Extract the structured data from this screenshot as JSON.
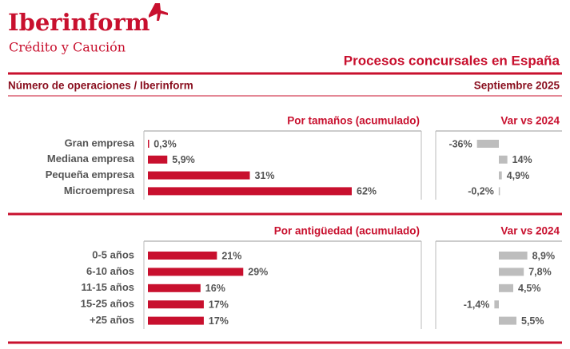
{
  "header": {
    "brand": "Iberinform",
    "tagline": "Crédito y Caución",
    "title": "Procesos concursales en España",
    "subtitle": "Número de operaciones / Iberinform",
    "date": "Septiembre 2025"
  },
  "chart_data": [
    {
      "type": "bar",
      "title": "Por tamaños (acumulado)",
      "categories": [
        "Gran empresa",
        "Mediana empresa",
        "Pequeña empresa",
        "Microempresa"
      ],
      "values": [
        0.3,
        5.9,
        31,
        62
      ],
      "value_labels": [
        "0,3%",
        "5,9%",
        "31%",
        "62%"
      ],
      "color": "#c8102e",
      "xlim": [
        0,
        62
      ]
    },
    {
      "type": "bar",
      "title": "Var vs 2024",
      "values": [
        -36,
        14,
        4.9,
        -0.2
      ],
      "value_labels": [
        "-36%",
        "14%",
        "4,9%",
        "-0,2%"
      ],
      "color": "#bdbdbd",
      "xlim": [
        -100,
        100
      ]
    },
    {
      "type": "bar",
      "title": "Por antigüedad (acumulado)",
      "categories": [
        "0-5 años",
        "6-10 años",
        "11-15 años",
        "15-25 años",
        "+25 años"
      ],
      "values": [
        21,
        29,
        16,
        17,
        17
      ],
      "value_labels": [
        "21%",
        "29%",
        "16%",
        "17%",
        "17%"
      ],
      "color": "#c8102e",
      "xlim": [
        0,
        62
      ]
    },
    {
      "type": "bar",
      "title": "Var vs 2024",
      "values": [
        8.9,
        7.8,
        4.5,
        -1.4,
        5.5
      ],
      "value_labels": [
        "8,9%",
        "7,8%",
        "4,5%",
        "-1,4%",
        "5,5%"
      ],
      "color": "#bdbdbd",
      "xlim": [
        -19,
        19
      ]
    }
  ]
}
